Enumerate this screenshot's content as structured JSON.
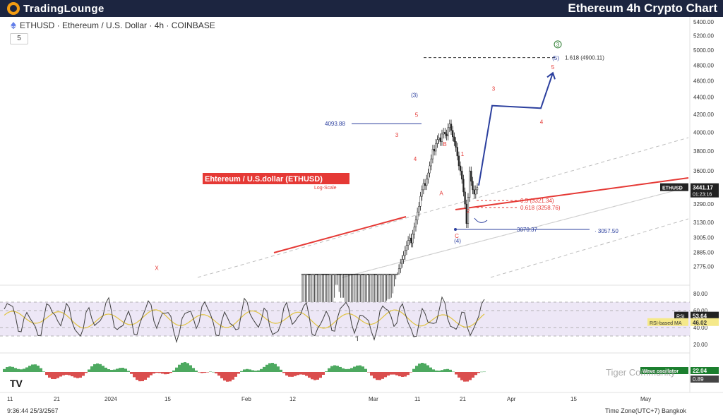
{
  "header": {
    "brand": "TradingLounge",
    "title": "Ethereum 4h Crypto Chart"
  },
  "symbol_line": "ETHUSD · Ethereum / U.S. Dollar · 4h · COINBASE",
  "interval_badge": "5",
  "timestamp": "9:36:44 25/3/2567",
  "timezone": "Time Zone(UTC+7) Bangkok",
  "watermark": "Tiger Community",
  "tv_logo": "TV",
  "colors": {
    "bg": "#ffffff",
    "topbar": "#1c2540",
    "accent": "#f39c12",
    "red": "#e53935",
    "blue": "#2b3f9e",
    "wave_green": "#2e7d32",
    "rsi": "#3f3f3f",
    "rsi_ma": "#e0c341",
    "rsi_band": "#ede7f6"
  },
  "chart_data": [
    {
      "type": "candlestick",
      "title": "Ehtereum / U.S.dollar (ETHUSD)",
      "subtitle": "Log-Scale",
      "scale": "log",
      "ylim": [
        2700,
        5400
      ],
      "y_ticks": [
        5400.0,
        5200.0,
        5000.0,
        4800.0,
        4600.0,
        4400.0,
        4200.0,
        4000.0,
        3800.0,
        3600.0,
        3290.0,
        3130.0,
        3005.0,
        2885.0,
        2775.0
      ],
      "x_ticks": [
        "11",
        "21",
        "2024",
        "15",
        "Feb",
        "12",
        "Mar",
        "11",
        "21",
        "Apr",
        "15",
        "May"
      ],
      "price_label": {
        "symbol": "ETHUSD",
        "price": "3441.17",
        "countdown": "01:23:16"
      },
      "levels": [
        {
          "label": "4093.88",
          "value": 4093.88
        },
        {
          "label": "1.618 (4900.11)",
          "value": 4900.11
        },
        {
          "label": "0.5 (3321.34)",
          "value": 3321.34
        },
        {
          "label": "0.618 (3258.76)",
          "value": 3258.76
        },
        {
          "label": "3070.37",
          "value": 3070.37
        },
        {
          "label": "3057.50",
          "value": 3057.5
        }
      ],
      "wave_labels": [
        {
          "label": "X",
          "value": 2750
        },
        {
          "label": "(3)",
          "value": 4400
        },
        {
          "label": "5",
          "value": 4170
        },
        {
          "label": "3",
          "value": 3950
        },
        {
          "label": "4",
          "value": 3700
        },
        {
          "label": "B",
          "value": 3850
        },
        {
          "label": "1",
          "value": 3750
        },
        {
          "label": "A",
          "value": 3370
        },
        {
          "label": "2",
          "value": 3210
        },
        {
          "label": "C",
          "value": 3000
        },
        {
          "label": "(4)",
          "value": 2960
        },
        {
          "label": "3",
          "value": 4480
        },
        {
          "label": "4",
          "value": 4090
        },
        {
          "label": "5",
          "value": 4750
        },
        {
          "label": "(5)",
          "value": 4870
        },
        {
          "label": "3",
          "value": 5050
        }
      ],
      "projection": [
        3460,
        4300,
        4270,
        4700
      ],
      "series_close": [
        2270,
        2290,
        2330,
        2360,
        2320,
        2300,
        2330,
        2380,
        2410,
        2390,
        2360,
        2380,
        2420,
        2400,
        2380,
        2350,
        2320,
        2290,
        2300,
        2340,
        2380,
        2520,
        2610,
        2560,
        2520,
        2480,
        2520,
        2480,
        2450,
        2440,
        2420,
        2380,
        2330,
        2300,
        2260,
        2240,
        2220,
        2280,
        2320,
        2300,
        2270,
        2290,
        2310,
        2290,
        2300,
        2320,
        2340,
        2310,
        2300,
        2330,
        2360,
        2380,
        2410,
        2440,
        2470,
        2500,
        2510,
        2490,
        2520,
        2550,
        2600,
        2650,
        2700,
        2760,
        2800,
        2830,
        2860,
        2900,
        2940,
        2980,
        3000,
        2960,
        3030,
        3090,
        3150,
        3220,
        3270,
        3360,
        3420,
        3480,
        3460,
        3520,
        3580,
        3650,
        3720,
        3820,
        3800,
        3880,
        3920,
        3940,
        3900,
        3980,
        4000,
        3980,
        3960,
        4050,
        4090,
        4020,
        3950,
        3900,
        3840,
        3750,
        3650,
        3600,
        3520,
        3400,
        3290,
        3120,
        3350,
        3600,
        3500,
        3420,
        3380,
        3420,
        3441
      ]
    },
    {
      "type": "line",
      "title": "RSI",
      "ylim": [
        20,
        80
      ],
      "y_ticks": [
        "80.00",
        "60.00",
        "40.00",
        "20.00"
      ],
      "series": [
        {
          "name": "RSI",
          "last": "53.64"
        },
        {
          "name": "RSI-based MA",
          "last": "46.02"
        }
      ]
    },
    {
      "type": "bar",
      "title": "Wave oscillator",
      "series": [
        {
          "name": "Wave oscillator",
          "last": "22.04"
        }
      ],
      "second_value": "0.89"
    }
  ]
}
